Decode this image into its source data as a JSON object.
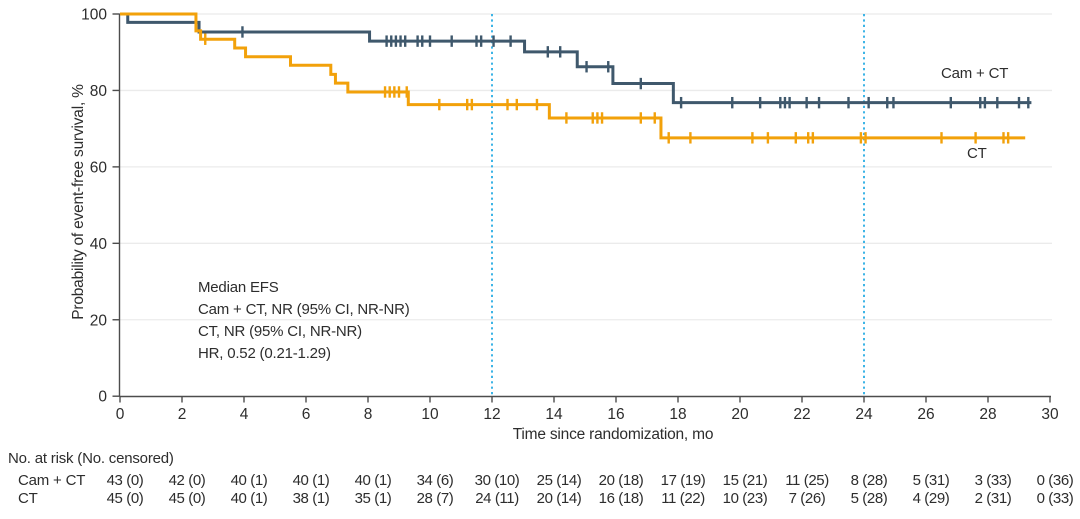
{
  "colors": {
    "cam_ct": "#3f586c",
    "ct": "#f2a10a",
    "reference_line": "#3cb4e6",
    "grid": "#ebebeb",
    "axis": "#4c4c4c",
    "text": "#2d2d2d"
  },
  "chart_data": {
    "type": "line",
    "subtype": "kaplan-meier-step",
    "title": "",
    "xlabel": "Time since randomization, mo",
    "ylabel": "Probability of event-free survival, %",
    "xlim": [
      0,
      30
    ],
    "ylim": [
      0,
      100
    ],
    "xticks": [
      0,
      2,
      4,
      6,
      8,
      10,
      12,
      14,
      16,
      18,
      20,
      22,
      24,
      26,
      28,
      30
    ],
    "yticks": [
      0,
      20,
      40,
      60,
      80,
      100
    ],
    "grid": "horizontal",
    "reference_lines_x": [
      12,
      24
    ],
    "legend_position": "right-on-plot",
    "annotation": [
      "Median EFS",
      "Cam + CT, NR (95% CI, NR-NR)",
      "CT, NR (95% CI, NR-NR)",
      "HR, 0.52 (0.21-1.29)"
    ],
    "series": [
      {
        "name": "Cam + CT",
        "color": "#3f586c",
        "steps": [
          [
            0,
            100
          ],
          [
            0.25,
            97.8
          ],
          [
            2.55,
            95.3
          ],
          [
            8.05,
            92.9
          ],
          [
            13.05,
            90.1
          ],
          [
            14.75,
            86.2
          ],
          [
            15.9,
            81.8
          ],
          [
            17.85,
            76.8
          ],
          [
            29.4,
            76.8
          ]
        ],
        "censors": [
          [
            3.95,
            95.3
          ],
          [
            8.6,
            92.9
          ],
          [
            8.75,
            92.9
          ],
          [
            8.9,
            92.9
          ],
          [
            9.05,
            92.9
          ],
          [
            9.2,
            92.9
          ],
          [
            9.6,
            92.9
          ],
          [
            9.75,
            92.9
          ],
          [
            10.0,
            92.9
          ],
          [
            10.7,
            92.9
          ],
          [
            11.5,
            92.9
          ],
          [
            11.65,
            92.9
          ],
          [
            12.05,
            92.9
          ],
          [
            12.6,
            92.9
          ],
          [
            13.8,
            90.1
          ],
          [
            14.2,
            90.1
          ],
          [
            15.05,
            86.2
          ],
          [
            15.75,
            86.2
          ],
          [
            16.8,
            81.8
          ],
          [
            18.1,
            76.8
          ],
          [
            19.75,
            76.8
          ],
          [
            20.65,
            76.8
          ],
          [
            21.3,
            76.8
          ],
          [
            21.45,
            76.8
          ],
          [
            21.6,
            76.8
          ],
          [
            22.15,
            76.8
          ],
          [
            22.55,
            76.8
          ],
          [
            23.5,
            76.8
          ],
          [
            24.15,
            76.8
          ],
          [
            24.75,
            76.8
          ],
          [
            24.95,
            76.8
          ],
          [
            26.8,
            76.8
          ],
          [
            27.75,
            76.8
          ],
          [
            27.9,
            76.8
          ],
          [
            28.3,
            76.8
          ],
          [
            29.0,
            76.8
          ],
          [
            29.3,
            76.8
          ]
        ]
      },
      {
        "name": "CT",
        "color": "#f2a10a",
        "steps": [
          [
            0,
            100
          ],
          [
            2.45,
            95.6
          ],
          [
            2.6,
            93.4
          ],
          [
            3.7,
            91.1
          ],
          [
            4.05,
            88.8
          ],
          [
            5.5,
            86.6
          ],
          [
            6.8,
            84.2
          ],
          [
            6.95,
            81.9
          ],
          [
            7.35,
            79.6
          ],
          [
            9.3,
            76.3
          ],
          [
            13.85,
            72.8
          ],
          [
            17.45,
            67.6
          ],
          [
            29.2,
            67.6
          ]
        ],
        "censors": [
          [
            2.75,
            93.4
          ],
          [
            8.55,
            79.6
          ],
          [
            8.7,
            79.6
          ],
          [
            8.85,
            79.6
          ],
          [
            9.0,
            79.6
          ],
          [
            9.25,
            79.6
          ],
          [
            10.3,
            76.3
          ],
          [
            11.2,
            76.3
          ],
          [
            11.35,
            76.3
          ],
          [
            12.5,
            76.3
          ],
          [
            12.8,
            76.3
          ],
          [
            13.45,
            76.3
          ],
          [
            14.4,
            72.8
          ],
          [
            15.25,
            72.8
          ],
          [
            15.4,
            72.8
          ],
          [
            15.55,
            72.8
          ],
          [
            16.8,
            72.8
          ],
          [
            17.25,
            72.8
          ],
          [
            17.7,
            67.6
          ],
          [
            18.4,
            67.6
          ],
          [
            20.4,
            67.6
          ],
          [
            20.9,
            67.6
          ],
          [
            21.8,
            67.6
          ],
          [
            22.2,
            67.6
          ],
          [
            22.35,
            67.6
          ],
          [
            23.9,
            67.6
          ],
          [
            24.05,
            67.6
          ],
          [
            26.5,
            67.6
          ],
          [
            27.6,
            67.6
          ],
          [
            28.5,
            67.6
          ],
          [
            28.65,
            67.6
          ]
        ]
      }
    ]
  },
  "risk_table": {
    "title": "No. at risk (No. censored)",
    "times": [
      0,
      2,
      4,
      6,
      8,
      10,
      12,
      14,
      16,
      18,
      20,
      22,
      24,
      26,
      28,
      30
    ],
    "rows": [
      {
        "label": "Cam + CT",
        "values": [
          "43 (0)",
          "42 (0)",
          "40 (1)",
          "40 (1)",
          "40 (1)",
          "34 (6)",
          "30 (10)",
          "25 (14)",
          "20 (18)",
          "17 (19)",
          "15 (21)",
          "11 (25)",
          "8 (28)",
          "5 (31)",
          "3 (33)",
          "0 (36)"
        ]
      },
      {
        "label": "CT",
        "values": [
          "45 (0)",
          "45 (0)",
          "40 (1)",
          "38 (1)",
          "35 (1)",
          "28 (7)",
          "24 (11)",
          "20 (14)",
          "16 (18)",
          "11 (22)",
          "10 (23)",
          "7 (26)",
          "5 (28)",
          "4 (29)",
          "2 (31)",
          "0 (33)"
        ]
      }
    ]
  }
}
